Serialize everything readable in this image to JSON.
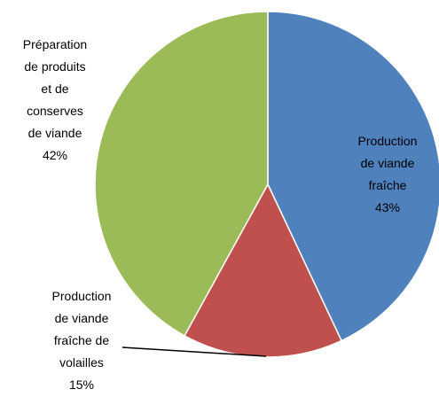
{
  "chart_data": {
    "type": "pie",
    "categories": [
      "Production de viande fraîche",
      "Production de viande fraîche de volailles",
      "Préparation de produits et de conserves de viande"
    ],
    "values": [
      43,
      15,
      42
    ],
    "value_labels": [
      "43%",
      "15%",
      "42%"
    ],
    "colors": [
      "#4f81bd",
      "#c0504d",
      "#9bbb59"
    ]
  }
}
